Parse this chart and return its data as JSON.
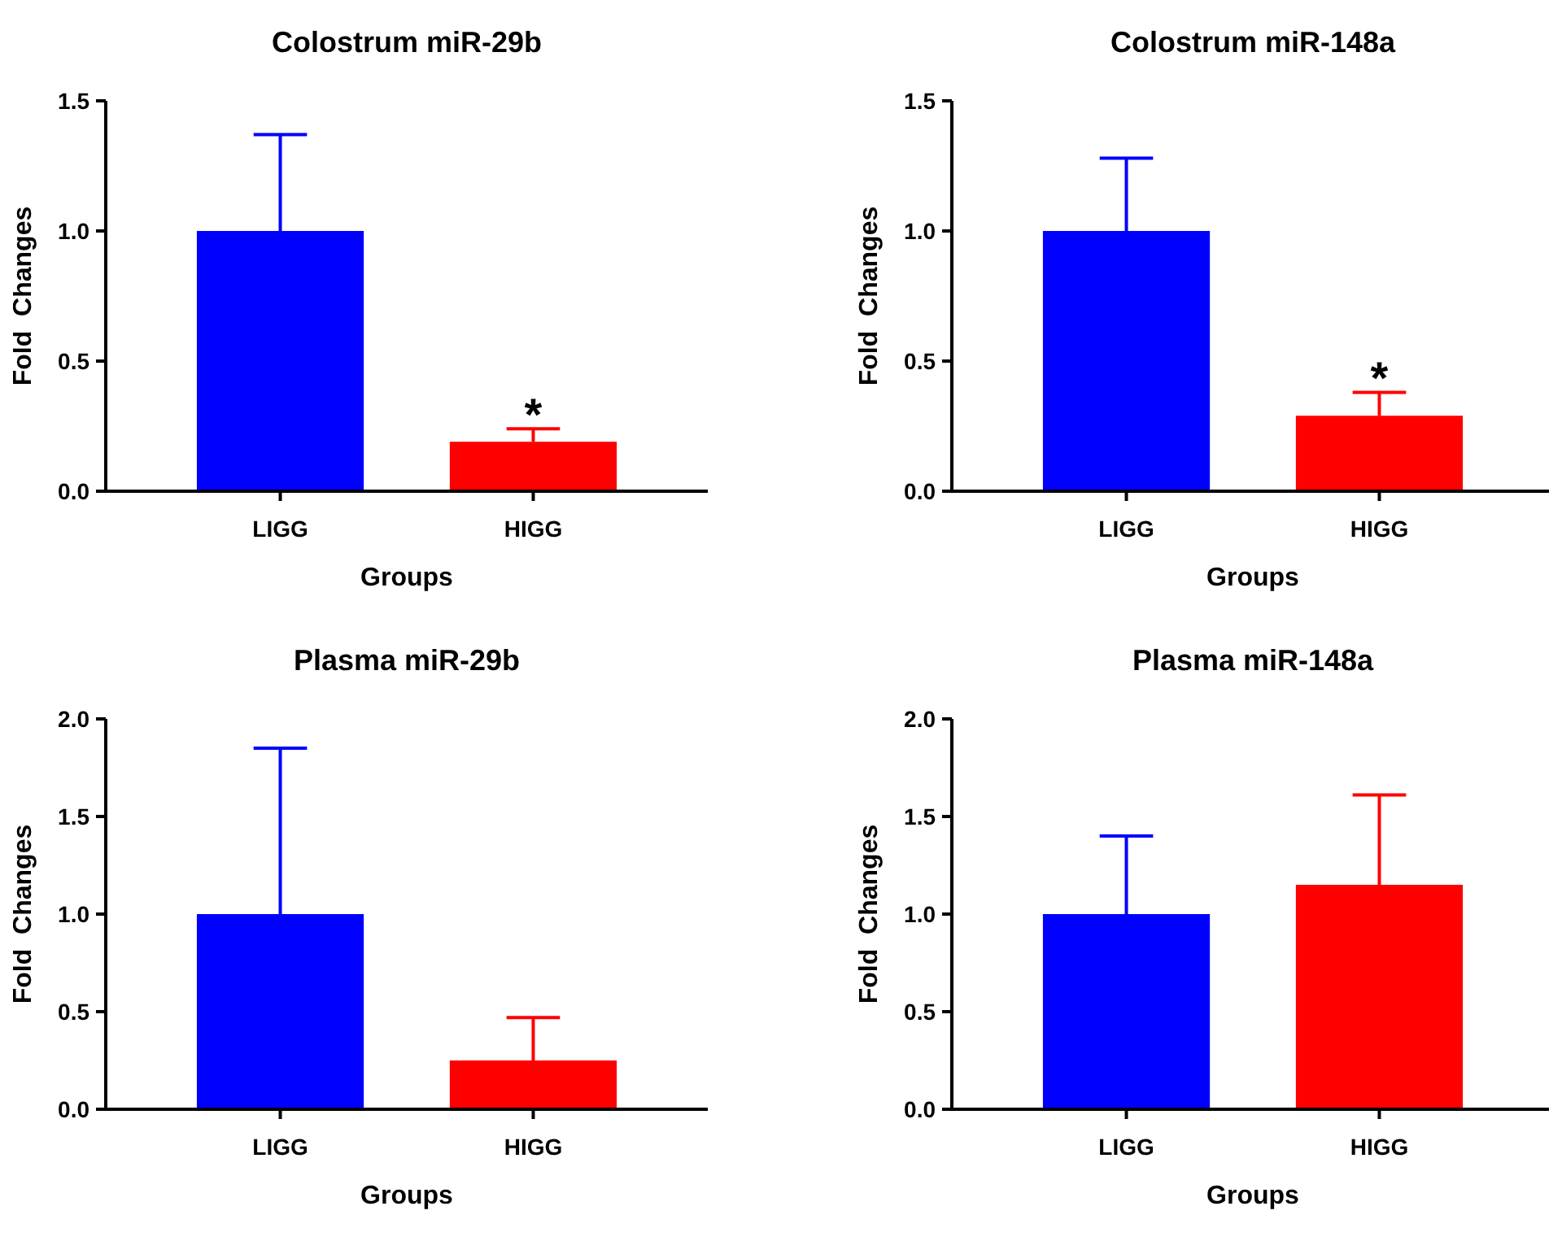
{
  "chart_data": [
    {
      "type": "bar",
      "title": "Colostrum miR-29b",
      "xlabel": "Groups",
      "ylabel": "Fold  Changes",
      "categories": [
        "LIGG",
        "HIGG"
      ],
      "values": [
        1.0,
        0.19
      ],
      "colors": [
        "#0000ff",
        "#ff0000"
      ],
      "errors": [
        [
          1.0,
          1.37
        ],
        [
          0.19,
          0.24
        ]
      ],
      "ylim": [
        0,
        1.5
      ],
      "yticks": [
        {
          "value": 0,
          "label": "0.0"
        },
        {
          "value": 0.5,
          "label": "0.5"
        },
        {
          "value": 1,
          "label": "1.0"
        },
        {
          "value": 1.5,
          "label": "1.5"
        }
      ],
      "annotations": [
        {
          "text": "*",
          "x": "HIGG",
          "y": 0.19
        }
      ]
    },
    {
      "type": "bar",
      "title": "Colostrum miR-148a",
      "xlabel": "Groups",
      "ylabel": "Fold  Changes",
      "categories": [
        "LIGG",
        "HIGG"
      ],
      "values": [
        1.0,
        0.29
      ],
      "colors": [
        "#0000ff",
        "#ff0000"
      ],
      "errors": [
        [
          1.0,
          1.28
        ],
        [
          0.29,
          0.38
        ]
      ],
      "ylim": [
        0,
        1.5
      ],
      "yticks": [
        {
          "value": 0,
          "label": "0.0"
        },
        {
          "value": 0.5,
          "label": "0.5"
        },
        {
          "value": 1,
          "label": "1.0"
        },
        {
          "value": 1.5,
          "label": "1.5"
        }
      ],
      "annotations": [
        {
          "text": "*",
          "x": "HIGG",
          "y": 0.29
        }
      ]
    },
    {
      "type": "bar",
      "title": "Plasma miR-29b",
      "xlabel": "Groups",
      "ylabel": "Fold  Changes",
      "categories": [
        "LIGG",
        "HIGG"
      ],
      "values": [
        1.0,
        0.25
      ],
      "colors": [
        "#0000ff",
        "#ff0000"
      ],
      "errors": [
        [
          1.0,
          1.85
        ],
        [
          0.25,
          0.47
        ]
      ],
      "ylim": [
        0,
        2
      ],
      "yticks": [
        {
          "value": 0,
          "label": "0.0"
        },
        {
          "value": 0.5,
          "label": "0.5"
        },
        {
          "value": 1,
          "label": "1.0"
        },
        {
          "value": 1.5,
          "label": "1.5"
        },
        {
          "value": 2,
          "label": "2.0"
        }
      ]
    },
    {
      "type": "bar",
      "title": "Plasma miR-148a",
      "xlabel": "Groups",
      "ylabel": "Fold  Changes",
      "categories": [
        "LIGG",
        "HIGG"
      ],
      "values": [
        1.0,
        1.15
      ],
      "colors": [
        "#0000ff",
        "#ff0000"
      ],
      "errors": [
        [
          1.0,
          1.4
        ],
        [
          1.15,
          1.61
        ]
      ],
      "ylim": [
        0,
        2
      ],
      "yticks": [
        {
          "value": 0,
          "label": "0.0"
        },
        {
          "value": 0.5,
          "label": "0.5"
        },
        {
          "value": 1,
          "label": "1.0"
        },
        {
          "value": 1.5,
          "label": "1.5"
        },
        {
          "value": 2,
          "label": "2.0"
        }
      ]
    }
  ]
}
